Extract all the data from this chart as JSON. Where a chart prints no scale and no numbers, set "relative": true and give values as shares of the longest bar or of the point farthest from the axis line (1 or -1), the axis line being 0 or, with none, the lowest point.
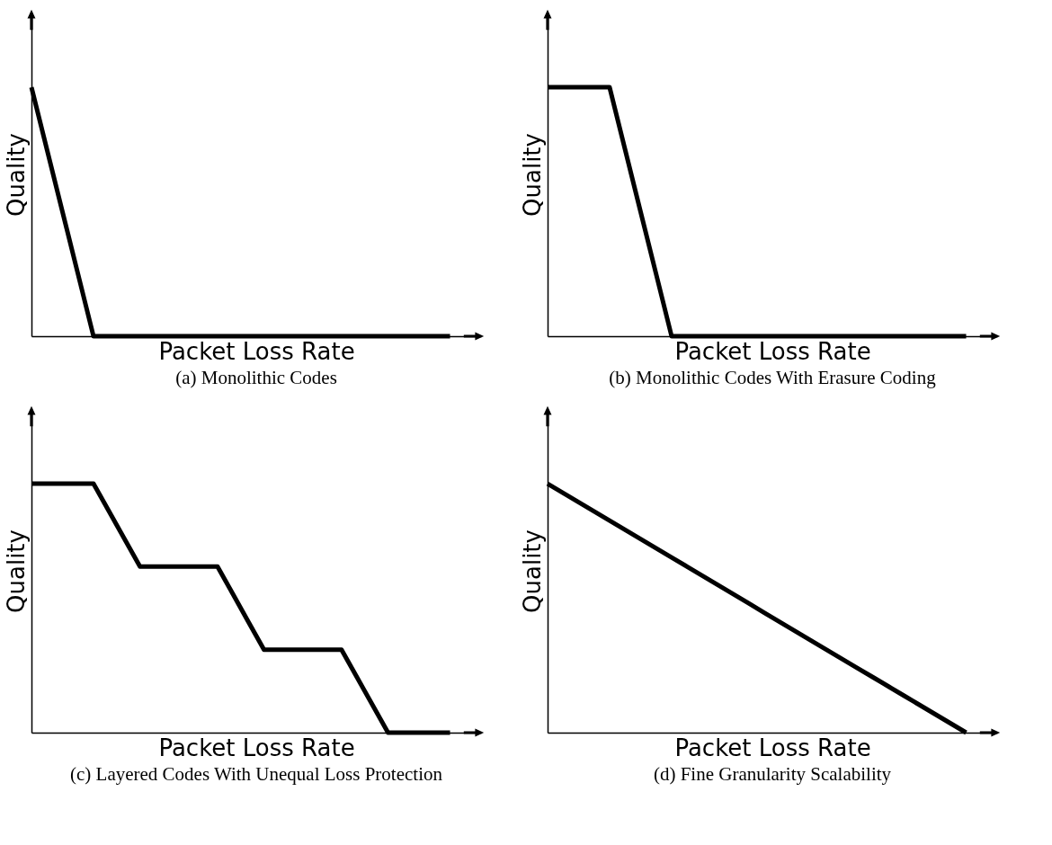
{
  "chart_data": [
    {
      "type": "line",
      "title": "(a) Monolithic Codes",
      "xlabel": "Packet Loss Rate",
      "ylabel": "Quality",
      "relative": true,
      "tick_labels": false,
      "categories": [
        null,
        null,
        null,
        null,
        null,
        null,
        null,
        null,
        null,
        null,
        null,
        null,
        null,
        null,
        null,
        null,
        null,
        null,
        null,
        null,
        null,
        null,
        null,
        null,
        null,
        null,
        null,
        null
      ],
      "series": [
        {
          "color": "#000000",
          "values": [
            1,
            0.75,
            0.5,
            0.25,
            0,
            0,
            0,
            0,
            0,
            0,
            0,
            0,
            0,
            0,
            0,
            0,
            0,
            0,
            0,
            0,
            0,
            0,
            0,
            0,
            0,
            0,
            0,
            0
          ]
        }
      ]
    },
    {
      "type": "line",
      "title": "(b) Monolithic Codes With Erasure Coding",
      "xlabel": "Packet Loss Rate",
      "ylabel": "Quality",
      "relative": true,
      "tick_labels": false,
      "categories": [
        null,
        null,
        null,
        null,
        null,
        null,
        null,
        null,
        null,
        null,
        null,
        null,
        null,
        null,
        null,
        null,
        null,
        null,
        null,
        null,
        null,
        null,
        null,
        null,
        null,
        null,
        null,
        null
      ],
      "series": [
        {
          "color": "#000000",
          "values": [
            1,
            1,
            1,
            1,
            1,
            0.75,
            0.5,
            0.25,
            0,
            0,
            0,
            0,
            0,
            0,
            0,
            0,
            0,
            0,
            0,
            0,
            0,
            0,
            0,
            0,
            0,
            0,
            0,
            0
          ]
        }
      ]
    },
    {
      "type": "line",
      "title": "(c) Layered Codes With Unequal Loss Protection",
      "xlabel": "Packet Loss Rate",
      "ylabel": "Quality",
      "relative": true,
      "tick_labels": false,
      "categories": [
        null,
        null,
        null,
        null,
        null,
        null,
        null,
        null,
        null,
        null,
        null,
        null,
        null,
        null,
        null,
        null,
        null,
        null,
        null,
        null,
        null,
        null,
        null,
        null,
        null,
        null,
        null,
        null
      ],
      "series": [
        {
          "color": "#000000",
          "values": [
            1,
            1,
            1,
            1,
            1,
            0.889,
            0.778,
            0.667,
            0.667,
            0.667,
            0.667,
            0.667,
            0.667,
            0.556,
            0.444,
            0.333,
            0.333,
            0.333,
            0.333,
            0.333,
            0.333,
            0.222,
            0.111,
            0,
            0,
            0,
            0,
            0
          ]
        }
      ]
    },
    {
      "type": "line",
      "title": "(d) Fine Granularity Scalability",
      "xlabel": "Packet Loss Rate",
      "ylabel": "Quality",
      "relative": true,
      "tick_labels": false,
      "categories": [
        null,
        null,
        null,
        null,
        null,
        null,
        null,
        null,
        null,
        null,
        null,
        null,
        null,
        null,
        null,
        null,
        null,
        null,
        null,
        null,
        null,
        null,
        null,
        null,
        null,
        null,
        null,
        null
      ],
      "series": [
        {
          "color": "#000000",
          "values": [
            1,
            0.963,
            0.926,
            0.889,
            0.852,
            0.815,
            0.778,
            0.741,
            0.704,
            0.667,
            0.63,
            0.593,
            0.556,
            0.519,
            0.481,
            0.444,
            0.407,
            0.37,
            0.333,
            0.296,
            0.259,
            0.222,
            0.185,
            0.148,
            0.111,
            0.074,
            0.037,
            0
          ]
        }
      ]
    }
  ]
}
